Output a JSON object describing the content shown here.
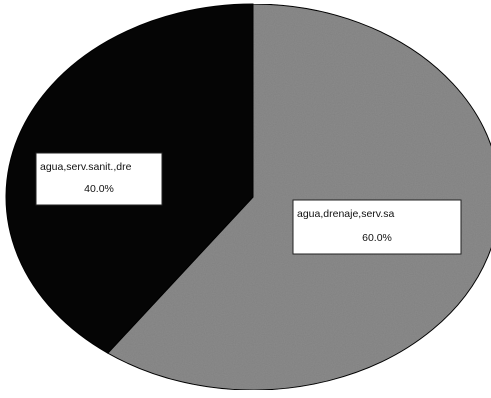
{
  "chart_data": {
    "type": "pie",
    "title": "",
    "slices": [
      {
        "label": "agua,drenaje,serv.sa",
        "value": 60.0,
        "value_label": "60.0%",
        "color": "#8c8c8c"
      },
      {
        "label": "agua,serv.sanit.,dre",
        "value": 40.0,
        "value_label": "40.0%",
        "color": "#050505"
      }
    ],
    "legend": "none",
    "start_angle": "12 o'clock",
    "direction": "clockwise",
    "label_style": "boxed labels with category and percentage"
  },
  "colors": {
    "background": "#ffffff",
    "label_box_fill": "#ffffff",
    "label_box_border": "#222222",
    "pie_outline": "#000000"
  }
}
